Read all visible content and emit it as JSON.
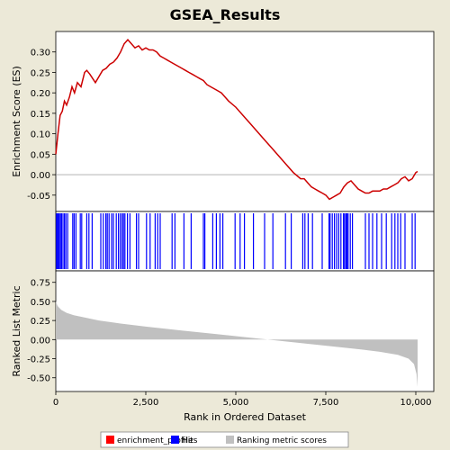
{
  "chart_data": {
    "type": "line",
    "title": "GSEA_Results",
    "colors": {
      "background": "#ECE9D8",
      "plot_bg": "#FFFFFF",
      "profile": "#CC0000",
      "hits": "#0000FF",
      "metric": "#C0C0C0",
      "text": "#000000"
    },
    "x_axis": {
      "label": "Rank in Ordered Dataset",
      "range": [
        0,
        10500
      ],
      "ticks": [
        0,
        2500,
        5000,
        7500,
        10000
      ],
      "tick_labels": [
        "0",
        "2,500",
        "5,000",
        "7,500",
        "10,000"
      ]
    },
    "top_panel": {
      "ylabel": "Enrichment Score (ES)",
      "ylim": [
        -0.09,
        0.35
      ],
      "ticks": [
        -0.05,
        0.0,
        0.05,
        0.1,
        0.15,
        0.2,
        0.25,
        0.3
      ],
      "tick_labels": [
        "-0.05",
        "0.00",
        "0.05",
        "0.10",
        "0.15",
        "0.20",
        "0.25",
        "0.30"
      ],
      "series": [
        {
          "name": "enrichment_profile",
          "x": [
            0,
            60,
            120,
            180,
            240,
            300,
            380,
            450,
            520,
            600,
            700,
            800,
            860,
            950,
            1100,
            1200,
            1300,
            1400,
            1500,
            1600,
            1700,
            1800,
            1900,
            2000,
            2100,
            2200,
            2300,
            2400,
            2500,
            2600,
            2700,
            2800,
            2900,
            3000,
            3100,
            3200,
            3300,
            3400,
            3500,
            3600,
            3700,
            3800,
            3900,
            4000,
            4100,
            4200,
            4300,
            4400,
            4500,
            4600,
            4700,
            4800,
            5000,
            5200,
            5400,
            5600,
            5800,
            6000,
            6200,
            6400,
            6600,
            6800,
            6900,
            7000,
            7100,
            7200,
            7300,
            7400,
            7500,
            7600,
            7700,
            7800,
            7900,
            8000,
            8100,
            8200,
            8300,
            8400,
            8500,
            8600,
            8700,
            8800,
            8900,
            9000,
            9100,
            9200,
            9300,
            9400,
            9500,
            9600,
            9700,
            9800,
            9900,
            10000,
            10050
          ],
          "y": [
            0.05,
            0.1,
            0.145,
            0.155,
            0.18,
            0.17,
            0.19,
            0.215,
            0.2,
            0.225,
            0.215,
            0.25,
            0.255,
            0.245,
            0.225,
            0.24,
            0.255,
            0.26,
            0.27,
            0.275,
            0.285,
            0.3,
            0.32,
            0.33,
            0.32,
            0.31,
            0.315,
            0.305,
            0.31,
            0.305,
            0.305,
            0.3,
            0.29,
            0.285,
            0.28,
            0.275,
            0.27,
            0.265,
            0.26,
            0.255,
            0.25,
            0.245,
            0.24,
            0.235,
            0.23,
            0.22,
            0.215,
            0.21,
            0.205,
            0.2,
            0.19,
            0.18,
            0.165,
            0.145,
            0.125,
            0.105,
            0.085,
            0.065,
            0.045,
            0.025,
            0.005,
            -0.01,
            -0.01,
            -0.02,
            -0.03,
            -0.035,
            -0.04,
            -0.045,
            -0.05,
            -0.06,
            -0.055,
            -0.05,
            -0.045,
            -0.03,
            -0.02,
            -0.015,
            -0.025,
            -0.035,
            -0.04,
            -0.045,
            -0.045,
            -0.04,
            -0.04,
            -0.04,
            -0.035,
            -0.035,
            -0.03,
            -0.025,
            -0.02,
            -0.01,
            -0.005,
            -0.015,
            -0.01,
            0.005,
            0.008
          ]
        }
      ]
    },
    "hits_panel": {
      "positions": [
        20,
        45,
        70,
        95,
        130,
        160,
        200,
        240,
        280,
        330,
        470,
        510,
        560,
        680,
        720,
        860,
        920,
        1010,
        1250,
        1320,
        1390,
        1430,
        1480,
        1550,
        1600,
        1680,
        1740,
        1790,
        1840,
        1880,
        1920,
        1990,
        2060,
        2240,
        2300,
        2520,
        2620,
        2760,
        2830,
        2900,
        3230,
        3310,
        3560,
        3760,
        4100,
        4140,
        4360,
        4460,
        4560,
        4640,
        4980,
        5120,
        5240,
        5490,
        5800,
        6030,
        6380,
        6540,
        6860,
        6920,
        7010,
        7130,
        7400,
        7590,
        7620,
        7680,
        7740,
        7800,
        7860,
        7920,
        7990,
        8020,
        8060,
        8090,
        8120,
        8180,
        8240,
        8600,
        8700,
        8800,
        8920,
        9050,
        9180,
        9330,
        9420,
        9500,
        9580,
        9700,
        9900,
        9980
      ]
    },
    "bottom_panel": {
      "ylabel": "Ranked List Metric",
      "ylim": [
        -0.68,
        0.9
      ],
      "ticks": [
        -0.5,
        -0.25,
        0.0,
        0.25,
        0.5,
        0.75
      ],
      "tick_labels": [
        "-0.50",
        "-0.25",
        "0.00",
        "0.25",
        "0.50",
        "0.75"
      ],
      "x": [
        0,
        50,
        150,
        300,
        500,
        800,
        1200,
        1800,
        2500,
        3500,
        4500,
        5500,
        6500,
        7500,
        8500,
        9000,
        9500,
        9800,
        9950,
        10020,
        10050
      ],
      "values": [
        0.5,
        0.44,
        0.39,
        0.35,
        0.32,
        0.29,
        0.25,
        0.21,
        0.17,
        0.12,
        0.07,
        0.02,
        -0.03,
        -0.08,
        -0.13,
        -0.16,
        -0.2,
        -0.25,
        -0.32,
        -0.45,
        -0.62
      ]
    },
    "legend": {
      "position": "bottom",
      "items": [
        {
          "label": "enrichment_profile",
          "color": "#FF0000"
        },
        {
          "label": "Hits",
          "color": "#0000FF"
        },
        {
          "label": "Ranking metric scores",
          "color": "#C0C0C0"
        }
      ]
    }
  }
}
